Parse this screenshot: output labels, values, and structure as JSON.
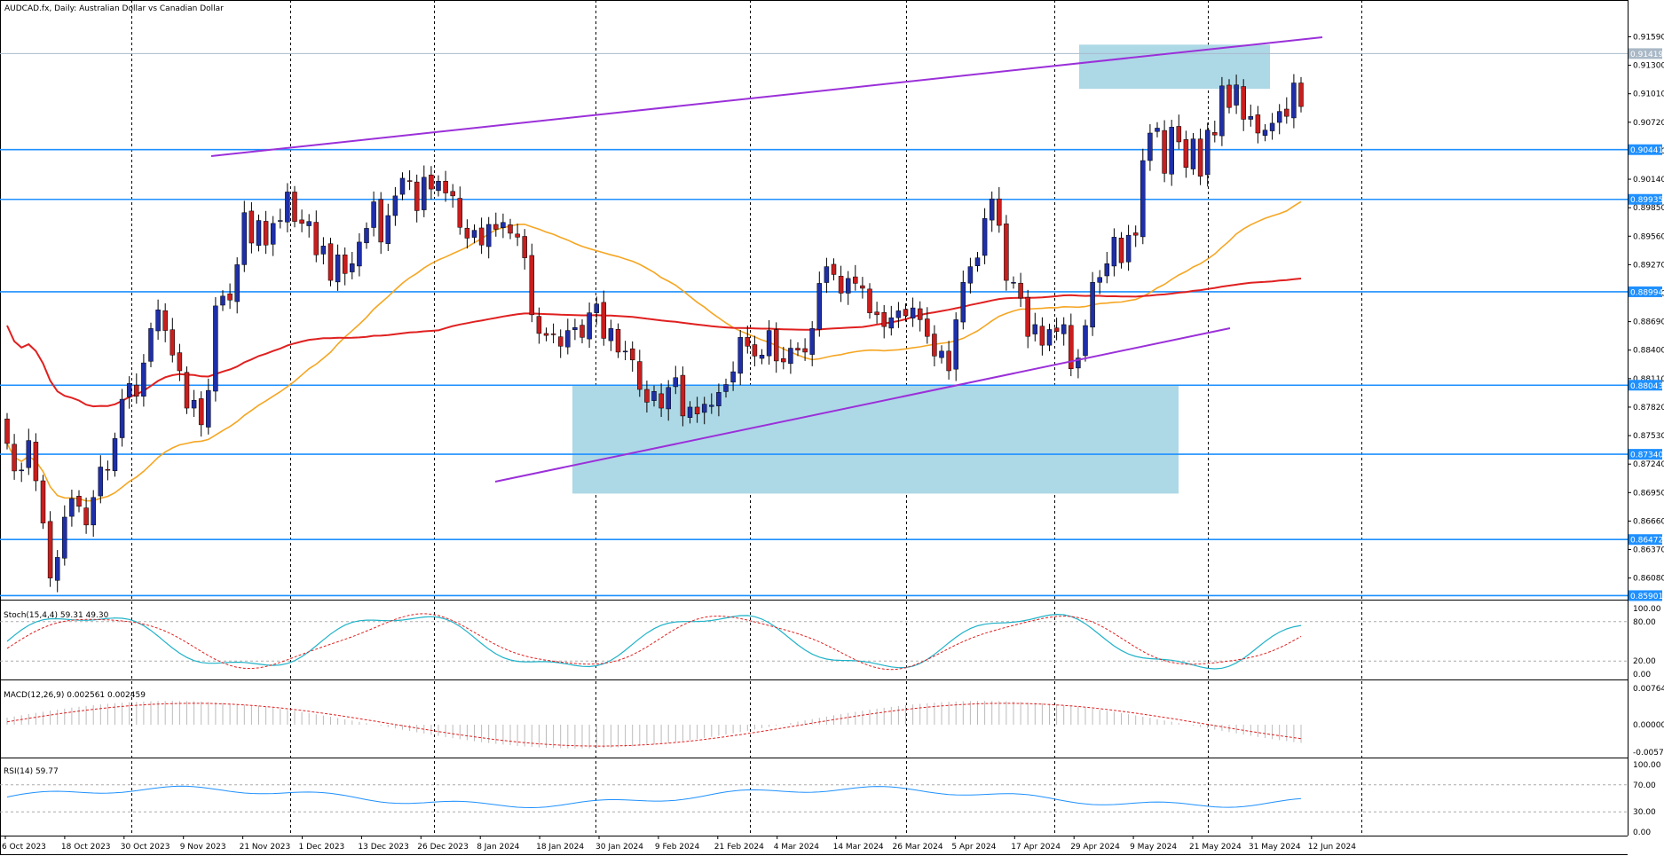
{
  "chart_data": {
    "type": "candlestick",
    "title": "AUDCAD.fx, Daily:  Australian Dollar vs Canadian Dollar",
    "symbol": "AUDCAD.fx",
    "timeframe": "Daily",
    "description": "Australian Dollar vs Canadian Dollar",
    "current_price": "0.91419",
    "price_axis": {
      "ylim": [
        0.8586,
        0.9182
      ],
      "ticks": [
        "0.91590",
        "0.91300",
        "0.91010",
        "0.90720",
        "0.90430",
        "0.90140",
        "0.89850",
        "0.89560",
        "0.89270",
        "0.88980",
        "0.88690",
        "0.88400",
        "0.88110",
        "0.87820",
        "0.87530",
        "0.87240",
        "0.86950",
        "0.86660",
        "0.86370",
        "0.86080"
      ]
    },
    "date_labels": [
      "6 Oct 2023",
      "18 Oct 2023",
      "30 Oct 2023",
      "9 Nov 2023",
      "21 Nov 2023",
      "1 Dec 2023",
      "13 Dec 2023",
      "26 Dec 2023",
      "8 Jan 2024",
      "18 Jan 2024",
      "30 Jan 2024",
      "9 Feb 2024",
      "21 Feb 2024",
      "4 Mar 2024",
      "14 Mar 2024",
      "26 Mar 2024",
      "5 Apr 2024",
      "17 Apr 2024",
      "29 Apr 2024",
      "9 May 2024",
      "21 May 2024",
      "31 May 2024",
      "12 Jun 2024"
    ],
    "horizontal_levels": [
      "0.90441",
      "0.89935",
      "0.88994",
      "0.88043",
      "0.87340",
      "0.86472",
      "0.85901"
    ],
    "closes": [
      0.8745,
      0.8717,
      0.8718,
      0.8748,
      0.8707,
      0.8664,
      0.8608,
      0.8629,
      0.867,
      0.8689,
      0.8681,
      0.8662,
      0.869,
      0.8721,
      0.8718,
      0.875,
      0.879,
      0.8806,
      0.8793,
      0.8827,
      0.8862,
      0.8881,
      0.886,
      0.8835,
      0.8819,
      0.8781,
      0.8789,
      0.8764,
      0.8799,
      0.8885,
      0.8895,
      0.8891,
      0.8927,
      0.898,
      0.8949,
      0.8972,
      0.8947,
      0.8969,
      0.8972,
      0.9001,
      0.8971,
      0.8969,
      0.8971,
      0.8937,
      0.8946,
      0.8911,
      0.8937,
      0.8918,
      0.8928,
      0.895,
      0.8964,
      0.8991,
      0.895,
      0.8977,
      0.8997,
      0.9015,
      0.9012,
      0.8982,
      0.9016,
      0.9004,
      0.9012,
      0.9,
      0.8997,
      0.8965,
      0.8954,
      0.8962,
      0.8947,
      0.8968,
      0.8963,
      0.897,
      0.8959,
      0.8955,
      0.8934,
      0.8876,
      0.8857,
      0.8855,
      0.8856,
      0.8844,
      0.886,
      0.8863,
      0.8853,
      0.8878,
      0.8887,
      0.8852,
      0.8862,
      0.8838,
      0.8839,
      0.883,
      0.88,
      0.8787,
      0.8798,
      0.8781,
      0.8802,
      0.8812,
      0.8773,
      0.8782,
      0.8775,
      0.8785,
      0.8784,
      0.8797,
      0.8805,
      0.8818,
      0.8853,
      0.8844,
      0.8834,
      0.8835,
      0.886,
      0.8829,
      0.8828,
      0.8842,
      0.884,
      0.8838,
      0.8862,
      0.8908,
      0.8925,
      0.8917,
      0.8898,
      0.8913,
      0.8908,
      0.8903,
      0.8878,
      0.8876,
      0.8864,
      0.8873,
      0.888,
      0.8875,
      0.8883,
      0.8871,
      0.8854,
      0.8834,
      0.8839,
      0.8819,
      0.8871,
      0.8909,
      0.8925,
      0.8934,
      0.8974,
      0.8994,
      0.8967,
      0.8911,
      0.8909,
      0.8893,
      0.8854,
      0.8866,
      0.8845,
      0.8861,
      0.8859,
      0.8866,
      0.8821,
      0.8832,
      0.8865,
      0.8909,
      0.8914,
      0.8928,
      0.8955,
      0.8929,
      0.8957,
      0.8957,
      0.9033,
      0.9061,
      0.9066,
      0.902,
      0.9067,
      0.9052,
      0.9026,
      0.9055,
      0.9017,
      0.9064,
      0.9059,
      0.9109,
      0.9087,
      0.911,
      0.9075,
      0.9078,
      0.9061,
      0.9064,
      0.9071,
      0.9083,
      0.9078,
      0.9112,
      0.9088,
      0.9093,
      0.9111,
      0.908,
      0.9088,
      0.9097,
      0.906,
      0.9107,
      0.9069,
      0.9077,
      0.9141
    ]
  }
}
